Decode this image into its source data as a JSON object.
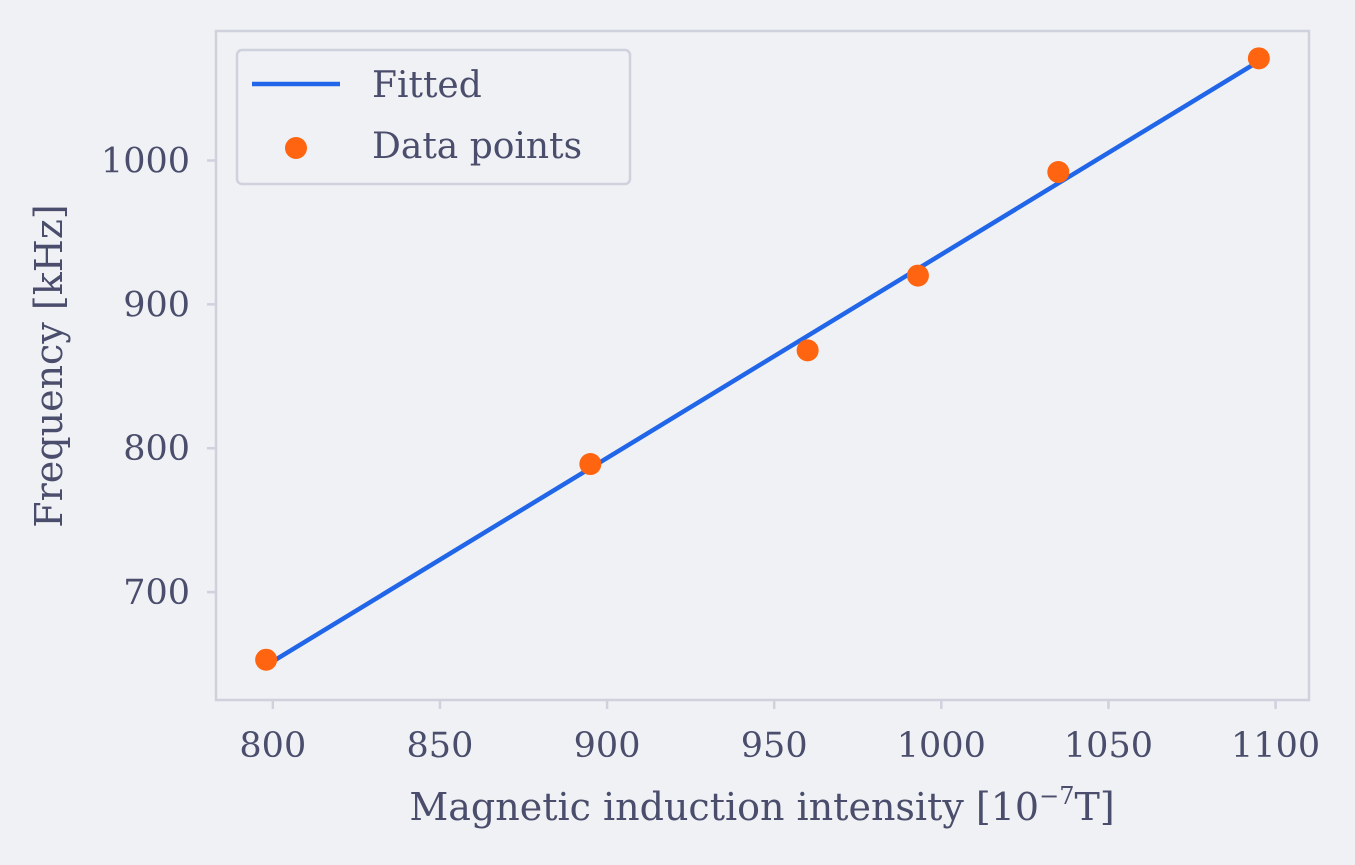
{
  "chart_data": {
    "type": "scatter",
    "title": "",
    "xlabel": "Magnetic induction intensity [10⁻⁷T]",
    "xlabel_main": "Magnetic induction intensity [10",
    "xlabel_exp": "−7",
    "xlabel_tail": "T]",
    "ylabel": "Frequency [kHz]",
    "xlim": [
      783,
      1110
    ],
    "ylim": [
      625,
      1090
    ],
    "xticks": [
      800,
      850,
      900,
      950,
      1000,
      1050,
      1100
    ],
    "yticks": [
      700,
      800,
      900,
      1000
    ],
    "grid": false,
    "legend_position": "top-left",
    "series": [
      {
        "name": "Fitted",
        "kind": "line",
        "color": "#2166e8",
        "x": [
          798,
          1095
        ],
        "y": [
          649,
          1069
        ]
      },
      {
        "name": "Data points",
        "kind": "scatter",
        "color": "#ff6410",
        "x": [
          798,
          895,
          960,
          993,
          1035,
          1095
        ],
        "y": [
          653,
          789,
          868,
          920,
          992,
          1071
        ]
      }
    ],
    "colors": {
      "background": "#f0f1f5",
      "axis": "#cfd1dd",
      "text": "#4a4d6b"
    }
  }
}
